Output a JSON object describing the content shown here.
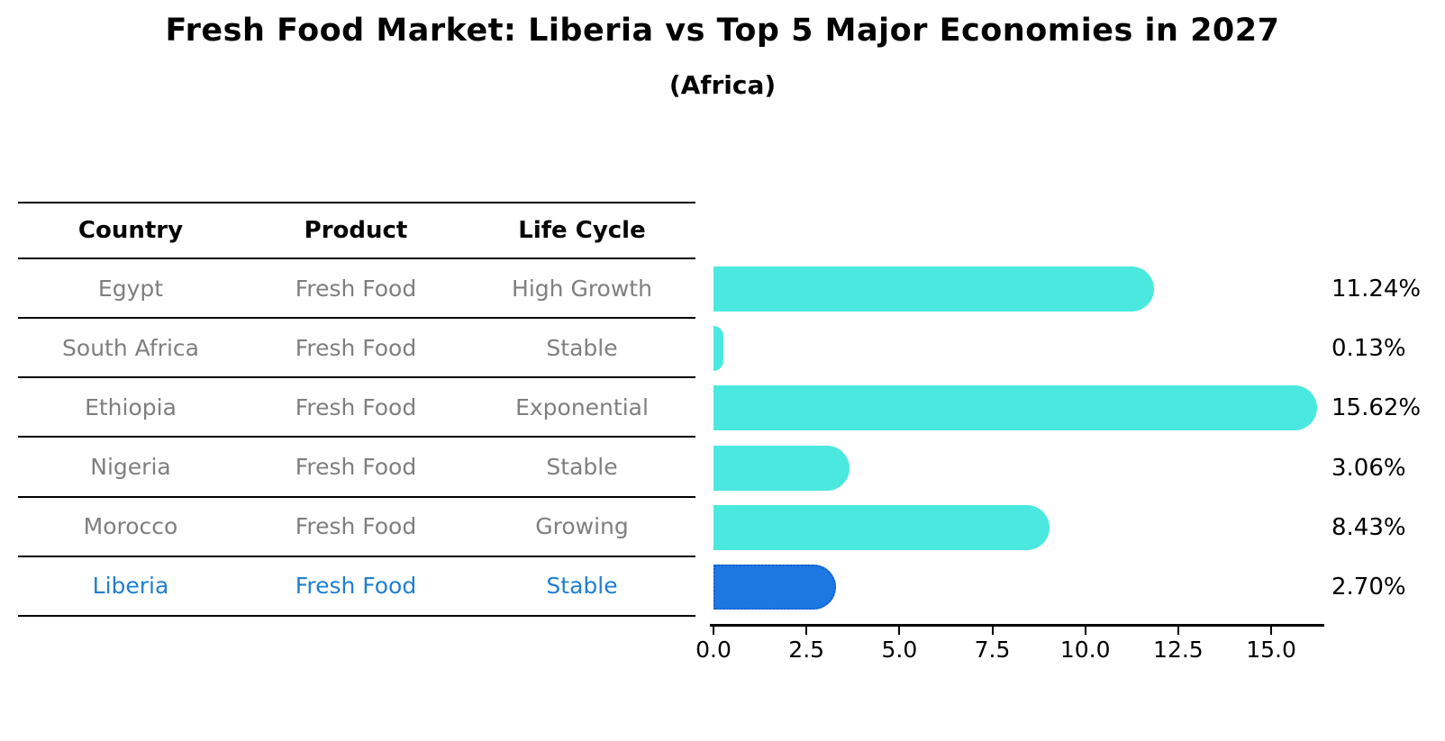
{
  "title": "Fresh Food Market: Liberia vs Top 5 Major Economies in 2027",
  "subtitle": "(Africa)",
  "table": {
    "headers": [
      "Country",
      "Product",
      "Life Cycle"
    ]
  },
  "chart_data": {
    "type": "bar",
    "orientation": "horizontal",
    "title": "Fresh Food Market: Liberia vs Top 5 Major Economies in 2027",
    "subtitle": "(Africa)",
    "xlabel": "",
    "ylabel": "",
    "xlim": [
      0,
      16.4
    ],
    "grid": false,
    "legend": "none",
    "x_tick_labels": [
      "0.0",
      "2.5",
      "5.0",
      "7.5",
      "10.0",
      "12.5",
      "15.0"
    ],
    "x_tick_values": [
      0,
      2.5,
      5,
      7.5,
      10,
      12.5,
      15
    ],
    "rows": [
      {
        "country": "Egypt",
        "product": "Fresh Food",
        "life_cycle": "High Growth",
        "value": 11.24,
        "label": "11.24%",
        "highlight": false
      },
      {
        "country": "South Africa",
        "product": "Fresh Food",
        "life_cycle": "Stable",
        "value": 0.13,
        "label": "0.13%",
        "highlight": false
      },
      {
        "country": "Ethiopia",
        "product": "Fresh Food",
        "life_cycle": "Exponential",
        "value": 15.62,
        "label": "15.62%",
        "highlight": false
      },
      {
        "country": "Nigeria",
        "product": "Fresh Food",
        "life_cycle": "Stable",
        "value": 3.06,
        "label": "3.06%",
        "highlight": false
      },
      {
        "country": "Morocco",
        "product": "Fresh Food",
        "life_cycle": "Growing",
        "value": 8.43,
        "label": "8.43%",
        "highlight": false
      },
      {
        "country": "Liberia",
        "product": "Fresh Food",
        "life_cycle": "Stable",
        "value": 2.7,
        "label": "2.70%",
        "highlight": true
      }
    ],
    "colors": {
      "bar": "#4be8e0",
      "highlight_bar": "#1e78e1",
      "highlight_border": "#1060d8",
      "highlight_text": "#1f7fd1",
      "row_text": "#7f7f7f",
      "header_text": "#000000",
      "value_text": "#000000",
      "axis": "#000000"
    }
  }
}
